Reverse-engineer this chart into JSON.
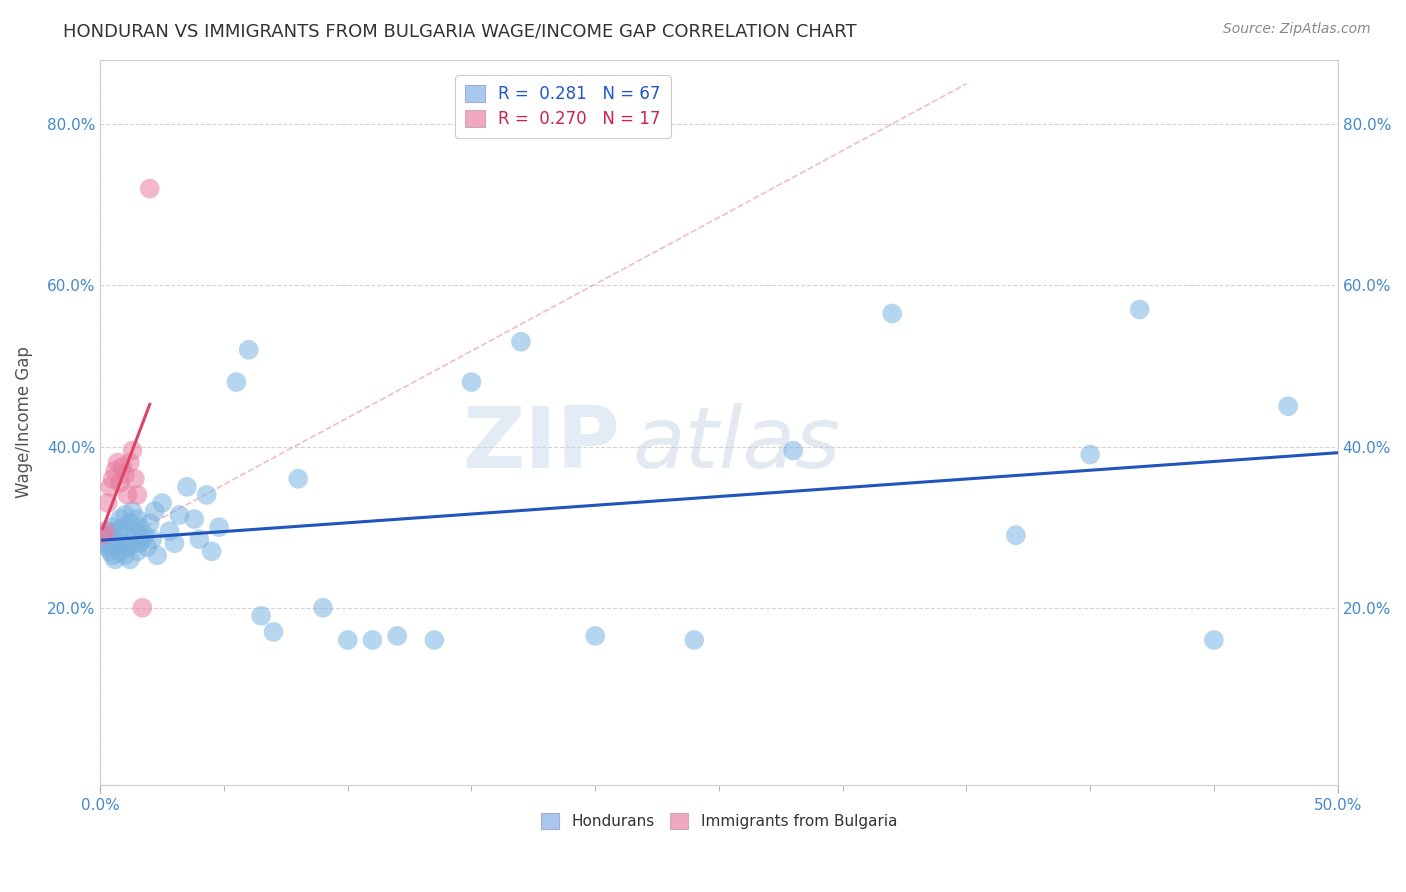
{
  "title": "HONDURAN VS IMMIGRANTS FROM BULGARIA WAGE/INCOME GAP CORRELATION CHART",
  "source_text": "Source: ZipAtlas.com",
  "ylabel": "Wage/Income Gap",
  "xlim": [
    0.0,
    0.5
  ],
  "ylim": [
    -0.02,
    0.88
  ],
  "ytick_positions": [
    0.2,
    0.4,
    0.6,
    0.8
  ],
  "ytick_labels": [
    "20.0%",
    "40.0%",
    "60.0%",
    "80.0%"
  ],
  "legend_entries": [
    {
      "label": "R =  0.281   N = 67",
      "color": "#a8c8f0"
    },
    {
      "label": "R =  0.270   N = 17",
      "color": "#f0a8c0"
    }
  ],
  "watermark_zip": "ZIP",
  "watermark_atlas": "atlas",
  "hondurans_x": [
    0.001,
    0.002,
    0.003,
    0.003,
    0.004,
    0.004,
    0.005,
    0.005,
    0.006,
    0.006,
    0.007,
    0.007,
    0.008,
    0.008,
    0.009,
    0.009,
    0.01,
    0.01,
    0.011,
    0.011,
    0.012,
    0.012,
    0.013,
    0.013,
    0.014,
    0.015,
    0.015,
    0.016,
    0.016,
    0.017,
    0.018,
    0.019,
    0.02,
    0.021,
    0.022,
    0.023,
    0.025,
    0.028,
    0.03,
    0.032,
    0.035,
    0.038,
    0.04,
    0.043,
    0.045,
    0.048,
    0.055,
    0.06,
    0.065,
    0.07,
    0.08,
    0.09,
    0.1,
    0.11,
    0.12,
    0.135,
    0.15,
    0.17,
    0.2,
    0.24,
    0.28,
    0.32,
    0.37,
    0.4,
    0.42,
    0.45,
    0.48
  ],
  "hondurans_y": [
    0.285,
    0.28,
    0.295,
    0.275,
    0.29,
    0.27,
    0.3,
    0.265,
    0.285,
    0.26,
    0.295,
    0.275,
    0.31,
    0.27,
    0.3,
    0.28,
    0.315,
    0.265,
    0.29,
    0.275,
    0.305,
    0.26,
    0.32,
    0.28,
    0.295,
    0.31,
    0.27,
    0.3,
    0.28,
    0.285,
    0.29,
    0.275,
    0.305,
    0.285,
    0.32,
    0.265,
    0.33,
    0.295,
    0.28,
    0.315,
    0.35,
    0.31,
    0.285,
    0.34,
    0.27,
    0.3,
    0.48,
    0.52,
    0.19,
    0.17,
    0.36,
    0.2,
    0.16,
    0.16,
    0.165,
    0.16,
    0.48,
    0.53,
    0.165,
    0.16,
    0.395,
    0.565,
    0.29,
    0.39,
    0.57,
    0.16,
    0.45
  ],
  "bulgaria_x": [
    0.001,
    0.002,
    0.003,
    0.004,
    0.005,
    0.006,
    0.007,
    0.008,
    0.009,
    0.01,
    0.011,
    0.012,
    0.013,
    0.014,
    0.015,
    0.017,
    0.02
  ],
  "bulgaria_y": [
    0.29,
    0.295,
    0.33,
    0.35,
    0.36,
    0.37,
    0.38,
    0.355,
    0.375,
    0.365,
    0.34,
    0.38,
    0.395,
    0.36,
    0.34,
    0.2,
    0.72
  ],
  "blue_color": "#7ab3e0",
  "pink_color": "#e87ca0",
  "blue_line_color": "#2255bb",
  "pink_line_color": "#dd4466",
  "ref_line_color": "#e8a0b8",
  "background_color": "#ffffff",
  "grid_color": "#d0d0d0"
}
